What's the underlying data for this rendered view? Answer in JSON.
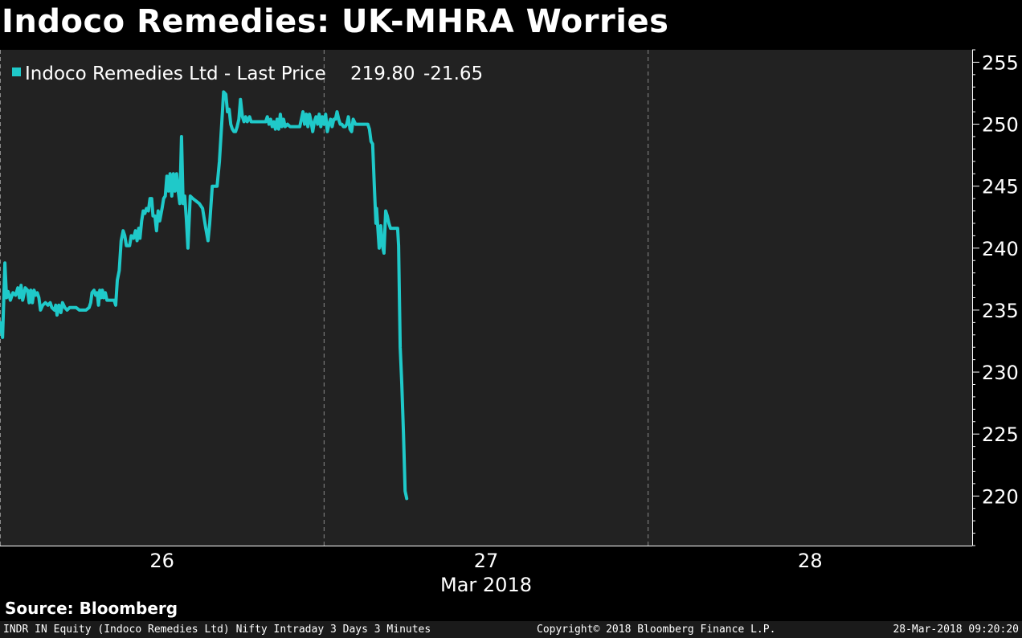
{
  "title": "Indoco Remedies: UK-MHRA Worries",
  "source_label": "Source: Bloomberg",
  "footer": {
    "left": "INDR IN Equity (Indoco Remedies Ltd) Nifty Intraday 3 Days 3 Minutes",
    "middle": "Copyright© 2018 Bloomberg Finance L.P.",
    "right": "28-Mar-2018 09:20:20"
  },
  "colors": {
    "background": "#000000",
    "plot_background": "#222222",
    "series": "#1fc9c9",
    "text": "#ffffff"
  },
  "chart_data": {
    "type": "line",
    "legend": {
      "name": "Indoco Remedies Ltd - Last Price",
      "last": "219.80",
      "change": "-21.65",
      "placement": "top-left"
    },
    "x_axis": {
      "ticks": [
        "26",
        "27",
        "28"
      ],
      "sublabel": "Mar 2018",
      "range": [
        25.5,
        28.5
      ],
      "session_boundaries": [
        26.5,
        27.5
      ]
    },
    "y_axis": {
      "range": [
        216,
        256
      ],
      "ticks": [
        220,
        225,
        230,
        235,
        240,
        245,
        250,
        255
      ],
      "position": "right"
    },
    "grid": false,
    "series": [
      {
        "name": "Indoco Remedies Ltd - Last Price",
        "points": [
          [
            25.5,
            234.0
          ],
          [
            25.508,
            232.8
          ],
          [
            25.515,
            238.8
          ],
          [
            25.52,
            236.0
          ],
          [
            25.525,
            236.5
          ],
          [
            25.532,
            235.8
          ],
          [
            25.54,
            236.4
          ],
          [
            25.548,
            236.2
          ],
          [
            25.555,
            236.8
          ],
          [
            25.56,
            236.0
          ],
          [
            25.565,
            237.0
          ],
          [
            25.57,
            235.8
          ],
          [
            25.578,
            236.8
          ],
          [
            25.585,
            236.6
          ],
          [
            25.59,
            235.6
          ],
          [
            25.595,
            236.6
          ],
          [
            25.6,
            235.6
          ],
          [
            25.605,
            236.6
          ],
          [
            25.61,
            236.2
          ],
          [
            25.615,
            236.4
          ],
          [
            25.62,
            236.0
          ],
          [
            25.625,
            235.0
          ],
          [
            25.632,
            235.4
          ],
          [
            25.64,
            235.6
          ],
          [
            25.648,
            235.4
          ],
          [
            25.655,
            235.6
          ],
          [
            25.66,
            235.2
          ],
          [
            25.668,
            235.0
          ],
          [
            25.672,
            235.4
          ],
          [
            25.676,
            234.6
          ],
          [
            25.682,
            235.4
          ],
          [
            25.688,
            234.8
          ],
          [
            25.693,
            235.6
          ],
          [
            25.7,
            235.2
          ],
          [
            25.707,
            235.0
          ],
          [
            25.715,
            235.2
          ],
          [
            25.725,
            235.2
          ],
          [
            25.735,
            235.2
          ],
          [
            25.745,
            235.0
          ],
          [
            25.755,
            235.0
          ],
          [
            25.765,
            235.0
          ],
          [
            25.775,
            235.2
          ],
          [
            25.78,
            235.6
          ],
          [
            25.784,
            236.4
          ],
          [
            25.79,
            236.6
          ],
          [
            25.795,
            236.2
          ],
          [
            25.8,
            236.4
          ],
          [
            25.804,
            235.4
          ],
          [
            25.808,
            236.6
          ],
          [
            25.812,
            236.0
          ],
          [
            25.816,
            236.6
          ],
          [
            25.82,
            236.0
          ],
          [
            25.825,
            236.4
          ],
          [
            25.83,
            235.8
          ],
          [
            25.838,
            235.8
          ],
          [
            25.846,
            235.8
          ],
          [
            25.852,
            235.8
          ],
          [
            25.857,
            235.4
          ],
          [
            25.862,
            237.4
          ],
          [
            25.868,
            238.2
          ],
          [
            25.874,
            240.6
          ],
          [
            25.88,
            241.4
          ],
          [
            25.885,
            241.0
          ],
          [
            25.89,
            240.2
          ],
          [
            25.9,
            240.2
          ],
          [
            25.905,
            241.0
          ],
          [
            25.912,
            240.8
          ],
          [
            25.918,
            241.4
          ],
          [
            25.923,
            240.6
          ],
          [
            25.928,
            241.6
          ],
          [
            25.932,
            240.8
          ],
          [
            25.937,
            242.2
          ],
          [
            25.942,
            243.0
          ],
          [
            25.947,
            242.8
          ],
          [
            25.952,
            243.2
          ],
          [
            25.958,
            243.0
          ],
          [
            25.963,
            244.0
          ],
          [
            25.968,
            244.0
          ],
          [
            25.972,
            242.6
          ],
          [
            25.978,
            242.6
          ],
          [
            25.983,
            241.4
          ],
          [
            25.988,
            243.0
          ],
          [
            25.993,
            242.2
          ],
          [
            26.0,
            243.2
          ],
          [
            26.005,
            244.0
          ],
          [
            26.01,
            244.2
          ],
          [
            26.015,
            245.8
          ],
          [
            26.02,
            244.6
          ],
          [
            26.025,
            246.0
          ],
          [
            26.03,
            244.2
          ],
          [
            26.035,
            246.0
          ],
          [
            26.04,
            244.6
          ],
          [
            26.045,
            246.0
          ],
          [
            26.05,
            244.6
          ],
          [
            26.055,
            243.6
          ],
          [
            26.06,
            249.0
          ],
          [
            26.065,
            243.6
          ],
          [
            26.07,
            244.2
          ],
          [
            26.075,
            242.4
          ],
          [
            26.08,
            240.0
          ],
          [
            26.087,
            244.2
          ],
          [
            26.095,
            244.0
          ],
          [
            26.105,
            243.8
          ],
          [
            26.115,
            243.6
          ],
          [
            26.125,
            243.2
          ],
          [
            26.135,
            241.6
          ],
          [
            26.142,
            240.6
          ],
          [
            26.147,
            242.0
          ],
          [
            26.155,
            245.0
          ],
          [
            26.162,
            245.0
          ],
          [
            26.17,
            245.0
          ],
          [
            26.177,
            247.0
          ],
          [
            26.185,
            250.4
          ],
          [
            26.19,
            252.6
          ],
          [
            26.197,
            252.4
          ],
          [
            26.202,
            251.0
          ],
          [
            26.207,
            251.2
          ],
          [
            26.212,
            250.0
          ],
          [
            26.217,
            249.6
          ],
          [
            26.222,
            249.4
          ],
          [
            26.227,
            249.4
          ],
          [
            26.232,
            249.8
          ],
          [
            26.237,
            250.4
          ],
          [
            26.242,
            252.0
          ],
          [
            26.248,
            250.6
          ],
          [
            26.253,
            250.2
          ],
          [
            26.258,
            250.6
          ],
          [
            26.263,
            250.2
          ],
          [
            26.27,
            250.6
          ],
          [
            26.275,
            250.2
          ],
          [
            26.282,
            250.2
          ],
          [
            26.29,
            250.2
          ],
          [
            26.298,
            250.2
          ],
          [
            26.305,
            250.2
          ],
          [
            26.312,
            250.2
          ],
          [
            26.32,
            250.2
          ],
          [
            26.325,
            250.6
          ],
          [
            26.33,
            250.0
          ],
          [
            26.335,
            250.4
          ],
          [
            26.34,
            249.8
          ],
          [
            26.345,
            250.2
          ],
          [
            26.35,
            249.6
          ],
          [
            26.355,
            250.4
          ],
          [
            26.36,
            249.6
          ],
          [
            26.365,
            250.8
          ],
          [
            26.37,
            249.8
          ],
          [
            26.375,
            250.4
          ],
          [
            26.38,
            249.8
          ],
          [
            26.387,
            250.0
          ],
          [
            26.395,
            249.8
          ],
          [
            26.405,
            249.8
          ],
          [
            26.415,
            249.8
          ],
          [
            26.425,
            249.8
          ],
          [
            26.43,
            250.4
          ],
          [
            26.435,
            251.0
          ],
          [
            26.44,
            250.0
          ],
          [
            26.445,
            250.8
          ],
          [
            26.45,
            249.8
          ],
          [
            26.455,
            250.8
          ],
          [
            26.46,
            250.2
          ],
          [
            26.465,
            249.4
          ],
          [
            26.47,
            250.2
          ],
          [
            26.475,
            250.6
          ],
          [
            26.48,
            250.0
          ],
          [
            26.485,
            250.8
          ],
          [
            26.49,
            249.8
          ],
          [
            26.495,
            250.6
          ],
          [
            26.5,
            250.0
          ],
          [
            26.505,
            250.8
          ],
          [
            26.51,
            249.4
          ],
          [
            26.515,
            250.0
          ],
          [
            26.52,
            250.4
          ],
          [
            26.525,
            249.8
          ],
          [
            26.53,
            250.4
          ],
          [
            26.535,
            250.4
          ],
          [
            26.54,
            251.0
          ],
          [
            26.545,
            250.4
          ],
          [
            26.55,
            250.0
          ],
          [
            26.555,
            250.0
          ],
          [
            26.56,
            249.8
          ],
          [
            26.565,
            249.8
          ],
          [
            26.57,
            250.0
          ],
          [
            26.575,
            250.6
          ],
          [
            26.58,
            249.6
          ],
          [
            26.585,
            249.4
          ],
          [
            26.59,
            250.4
          ],
          [
            26.597,
            250.0
          ],
          [
            26.605,
            250.0
          ],
          [
            26.615,
            250.0
          ],
          [
            26.625,
            250.0
          ],
          [
            26.635,
            250.0
          ],
          [
            26.64,
            249.6
          ],
          [
            26.645,
            248.6
          ],
          [
            26.65,
            248.4
          ],
          [
            26.655,
            245.0
          ],
          [
            26.66,
            242.0
          ],
          [
            26.662,
            243.2
          ],
          [
            26.666,
            241.6
          ],
          [
            26.67,
            240.0
          ],
          [
            26.675,
            241.8
          ],
          [
            26.68,
            240.2
          ],
          [
            26.685,
            239.6
          ],
          [
            26.69,
            243.0
          ],
          [
            26.695,
            242.6
          ],
          [
            26.7,
            242.0
          ],
          [
            26.705,
            241.6
          ],
          [
            26.712,
            241.6
          ],
          [
            26.72,
            241.6
          ],
          [
            26.727,
            241.6
          ],
          [
            26.73,
            240.2
          ],
          [
            26.735,
            232.0
          ],
          [
            26.74,
            229.0
          ],
          [
            26.745,
            225.0
          ],
          [
            26.75,
            220.4
          ],
          [
            26.755,
            219.8
          ]
        ]
      }
    ]
  }
}
